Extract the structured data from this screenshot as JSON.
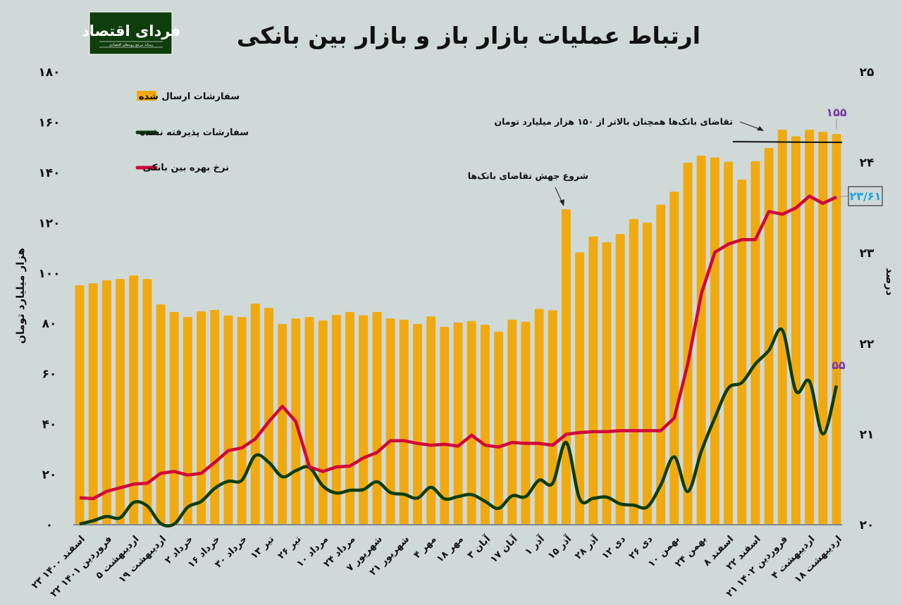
{
  "header": {
    "title": "ارتباط عملیات بازار باز و بازار بین بانکی",
    "logo_text": "فردای اقتصاد",
    "logo_subtext": "رسانه مرجع روندهای اقتصادی"
  },
  "colors": {
    "background": "#cfd9d8",
    "bars": "#f0aa10",
    "rejected_line": "#0d3d0a",
    "rate_line": "#d0063a",
    "label_purple": "#7b3aa3",
    "label_cyan": "#1aa3e6",
    "logo_bg": "#0f3d0c"
  },
  "chart_data": {
    "type": "bar+line",
    "title": "ارتباط عملیات بازار باز و بازار بین بانکی",
    "ylabel_left": "هزار میلیارد تومان",
    "ylabel_right": "درصد",
    "ylim_left": [
      0,
      180
    ],
    "ylim_right": [
      20,
      25
    ],
    "yticks_left": [
      "۰",
      "۲۰",
      "۴۰",
      "۶۰",
      "۸۰",
      "۱۰۰",
      "۱۲۰",
      "۱۴۰",
      "۱۶۰",
      "۱۸۰"
    ],
    "yticks_right": [
      "۲۰",
      "۲۱",
      "۲۲",
      "۲۳",
      "۲۴",
      "۲۵"
    ],
    "grid": false,
    "legend_placement": "top-left",
    "x_tick_labels": [
      "۲۳ اسفند ۱۴۰۰",
      "۲۲ فروردین ۱۴۰۱",
      "۵ اردیبهشت",
      "۱۹ اردیبهشت",
      "۲ خرداد",
      "۱۶ خرداد",
      "۳۰ خرداد",
      "۱۳ تیر",
      "۲۶ تیر",
      "۱۰ مرداد",
      "۲۴ مرداد",
      "۷ شهریور",
      "۲۱ شهریور",
      "۴ مهر",
      "۱۸ مهر",
      "۳ آبان",
      "۱۷ آبان",
      "۱ آذر",
      "۱۵ آذر",
      "۲۸ آذر",
      "۱۲ دی",
      "۲۶ دی",
      "۱۰ بهمن",
      "۲۴ بهمن",
      "۸ اسفند",
      "۲۲ اسفند",
      "۲۱ فروردین ۱۴۰۲",
      "۴ اردیبهشت",
      "۱۸ اردیبهشت"
    ],
    "series": [
      {
        "name": "سفارشات ارسال شده",
        "type": "bar",
        "axis": "left",
        "values": [
          94.9,
          95.7,
          96.9,
          97.4,
          98.8,
          97.4,
          87.3,
          84.3,
          82.3,
          84.5,
          85.1,
          82.9,
          82.3,
          87.6,
          85.9,
          79.5,
          81.7,
          82.3,
          80.9,
          83.1,
          84.3,
          83.0,
          84.3,
          81.7,
          81.2,
          79.5,
          82.5,
          78.4,
          80.1,
          80.7,
          79.2,
          76.5,
          81.2,
          80.4,
          85.5,
          85.0,
          125.1,
          108.0,
          114.3,
          112.0,
          115.3,
          121.2,
          119.8,
          126.9,
          132.1,
          143.6,
          146.4,
          145.7,
          144.0,
          136.9,
          144.2,
          149.5,
          156.7,
          154.1,
          156.7,
          155.9,
          155
        ]
      },
      {
        "name": "سفارشات پذیرفته نشده",
        "type": "line",
        "axis": "left",
        "values": [
          0,
          1.3,
          3,
          2.5,
          8.6,
          7.2,
          0.2,
          0,
          6.7,
          9,
          14.2,
          17,
          17.4,
          27.2,
          24.5,
          18.8,
          21.2,
          22.5,
          15.1,
          12.3,
          13.4,
          13.7,
          16.8,
          12.5,
          11.8,
          10.3,
          14.6,
          10.0,
          10.9,
          11.7,
          9.0,
          6.2,
          11.2,
          10.9,
          17.4,
          16.2,
          32.4,
          10.0,
          10.2,
          10.7,
          8.0,
          7.5,
          6.8,
          15.5,
          26.7,
          12.9,
          28.9,
          42.2,
          54.0,
          56.2,
          63.6,
          69.0,
          77.0,
          52.9,
          56.7,
          35.8,
          55
        ]
      },
      {
        "name": "نرخ بهره بین بانکی",
        "type": "line",
        "axis": "right",
        "values": [
          20.29,
          20.28,
          20.36,
          20.4,
          20.44,
          20.45,
          20.56,
          20.58,
          20.54,
          20.56,
          20.68,
          20.81,
          20.84,
          20.94,
          21.13,
          21.3,
          21.13,
          20.63,
          20.58,
          20.63,
          20.64,
          20.73,
          20.79,
          20.92,
          20.92,
          20.89,
          20.87,
          20.88,
          20.86,
          20.98,
          20.87,
          20.85,
          20.9,
          20.89,
          20.89,
          20.87,
          20.99,
          21.01,
          21.02,
          21.02,
          21.03,
          21.03,
          21.03,
          21.03,
          21.17,
          21.77,
          22.54,
          23.0,
          23.09,
          23.14,
          23.14,
          23.45,
          23.42,
          23.49,
          23.62,
          23.54,
          23.61
        ]
      }
    ],
    "data_labels": {
      "last_bar": "۱۵۵",
      "last_rejected": "۵۵",
      "last_rate": "۲۳/۶۱"
    },
    "annotations": {
      "demand_above": "تقاضای بانک‌ها همچنان بالاتر از ۱۵۰ هزار میلیارد تومان",
      "demand_jump": "شروع جهش تقاضای بانک‌ها"
    },
    "reference_line_value": 150
  }
}
